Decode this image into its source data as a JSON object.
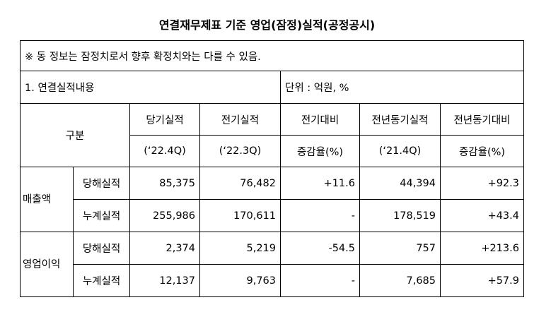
{
  "title": "연결재무제표 기준 영업(잠정)실적(공정공시)",
  "notice": "※ 동 정보는 잠정치로서 향후 확정치와는 다를 수 있음.",
  "section": "1. 연결실적내용",
  "unit": "단위 : 억원, %",
  "table": {
    "header_group": "구분",
    "columns": [
      {
        "name": "당기실적",
        "period": "(‘22.4Q)"
      },
      {
        "name": "전기실적",
        "period": "(‘22.3Q)"
      },
      {
        "name": "전기대비",
        "period": "증감율(%)"
      },
      {
        "name": "전년동기실적",
        "period": "(‘21.4Q)"
      },
      {
        "name": "전년동기대비",
        "period": "증감율(%)"
      }
    ],
    "groups": [
      {
        "name": "매출액",
        "rows": [
          {
            "label": "당해실적",
            "values": [
              "85,375",
              "76,482",
              "+11.6",
              "44,394",
              "+92.3"
            ]
          },
          {
            "label": "누계실적",
            "values": [
              "255,986",
              "170,611",
              "-",
              "178,519",
              "+43.4"
            ]
          }
        ]
      },
      {
        "name": "영업이익",
        "rows": [
          {
            "label": "당해실적",
            "values": [
              "2,374",
              "5,219",
              "-54.5",
              "757",
              "+213.6"
            ]
          },
          {
            "label": "누계실적",
            "values": [
              "12,137",
              "9,763",
              "-",
              "7,685",
              "+57.9"
            ]
          }
        ]
      }
    ]
  }
}
